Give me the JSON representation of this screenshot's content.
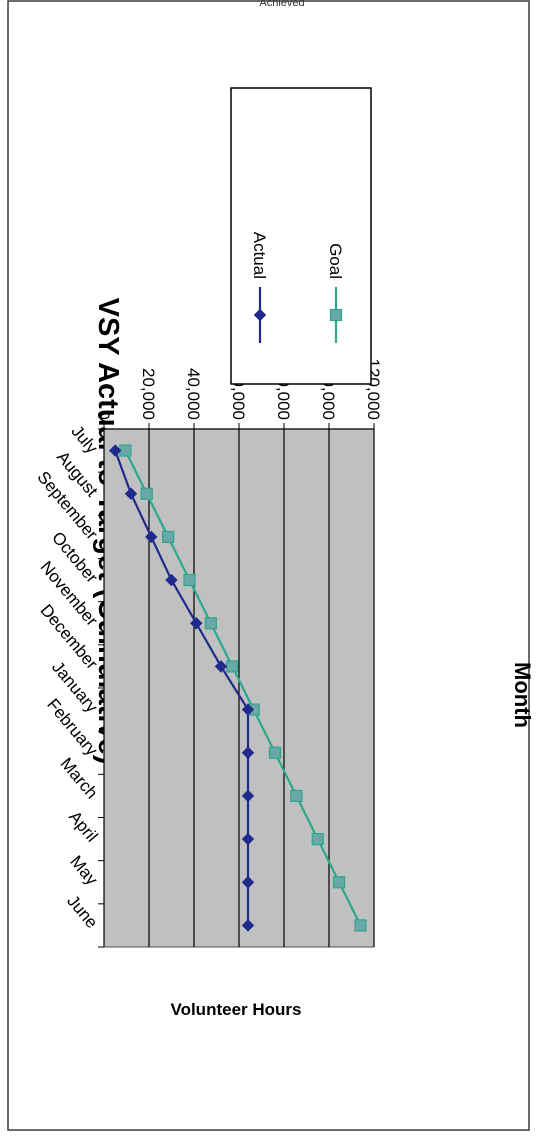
{
  "page": {
    "top_text": "Achieved"
  },
  "chart_data": {
    "type": "line",
    "title": "VSY Actual to Target (Cumulative)",
    "xlabel": "Month",
    "ylabel": "Volunteer Hours",
    "categories": [
      "July",
      "August",
      "September",
      "October",
      "November",
      "December",
      "January",
      "February",
      "March",
      "April",
      "May",
      "June"
    ],
    "ylim": [
      0,
      120000
    ],
    "yticks": [
      0,
      20000,
      40000,
      60000,
      80000,
      100000,
      120000
    ],
    "ytick_labels": [
      "0",
      "20,000",
      "40,000",
      "60,000",
      "80,000",
      "100,000",
      "120,000"
    ],
    "grid": true,
    "legend_position": "right",
    "series": [
      {
        "name": "Actual",
        "marker": "diamond",
        "color": "#1f2a8c",
        "values": [
          5000,
          12000,
          21000,
          30000,
          41000,
          52000,
          64000,
          64000,
          64000,
          64000,
          64000,
          64000
        ]
      },
      {
        "name": "Goal",
        "marker": "square",
        "color": "#2aa889",
        "values": [
          9500,
          19000,
          28500,
          38000,
          47500,
          57000,
          66500,
          76000,
          85500,
          95000,
          104500,
          114000
        ]
      }
    ],
    "plot_bg": "#c0c0c0",
    "goal_marker_fill": "#6aa7a8"
  }
}
